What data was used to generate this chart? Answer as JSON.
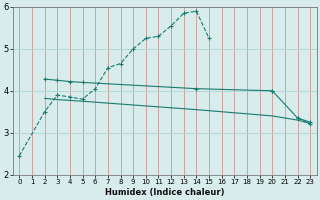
{
  "title": "",
  "xlabel": "Humidex (Indice chaleur)",
  "background_color": "#d8ecec",
  "grid_color_h": "#aed4d4",
  "grid_color_v": "#d4a0a0",
  "line_color": "#1a7a6e",
  "xlim": [
    -0.5,
    23.5
  ],
  "ylim": [
    2,
    6
  ],
  "yticks": [
    2,
    3,
    4,
    5,
    6
  ],
  "xticks": [
    0,
    1,
    2,
    3,
    4,
    5,
    6,
    7,
    8,
    9,
    10,
    11,
    12,
    13,
    14,
    15,
    16,
    17,
    18,
    19,
    20,
    21,
    22,
    23
  ],
  "curve1_x": [
    0,
    2,
    3,
    4,
    5,
    6,
    7,
    8,
    9,
    10,
    11,
    12,
    13,
    14,
    15,
    20,
    22,
    23
  ],
  "curve1_y": [
    2.45,
    3.5,
    3.9,
    3.85,
    3.8,
    4.05,
    4.55,
    4.65,
    5.0,
    5.25,
    5.3,
    5.55,
    5.85,
    5.9,
    5.25,
    4.0,
    3.35,
    3.2
  ],
  "curve2_x": [
    2,
    3,
    4,
    5,
    14,
    20,
    22,
    23
  ],
  "curve2_y": [
    4.28,
    4.25,
    4.22,
    4.2,
    4.05,
    4.0,
    3.35,
    3.25
  ],
  "curve3_x": [
    2,
    3,
    4,
    5,
    14,
    20,
    22,
    23
  ],
  "curve3_y": [
    3.82,
    3.79,
    3.77,
    3.75,
    3.55,
    3.4,
    3.3,
    3.22
  ]
}
